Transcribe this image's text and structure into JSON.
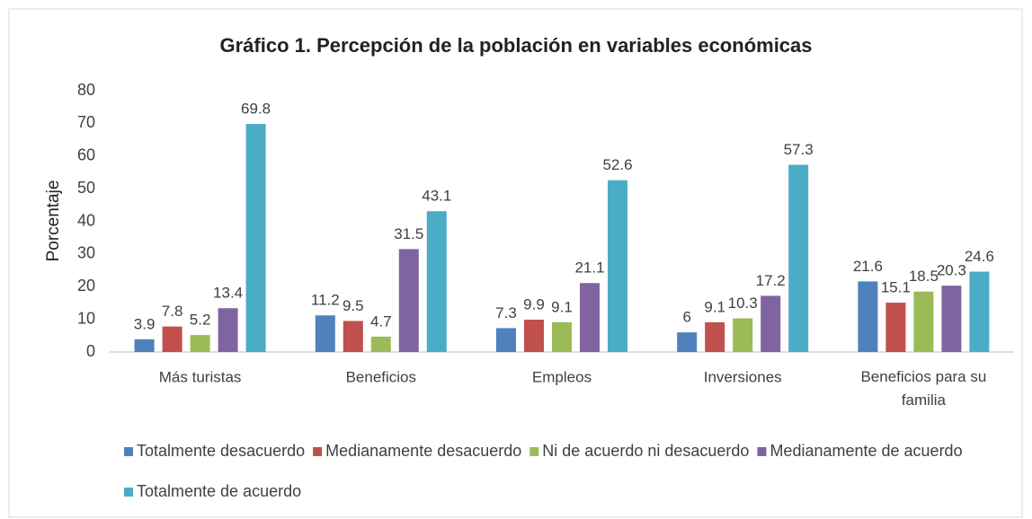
{
  "chart_data": {
    "type": "bar",
    "title": "Gráfico 1. Percepción de la población en variables económicas",
    "y_label": "Porcentaje",
    "categories": [
      "Más turistas",
      "Beneficios",
      "Empleos",
      "Inversiones",
      "Beneficios para su familia"
    ],
    "series": [
      {
        "name": "Totalmente desacuerdo",
        "color": "#4f81bd",
        "values": [
          3.9,
          11.2,
          7.3,
          6,
          21.6
        ]
      },
      {
        "name": "Medianamente desacuerdo",
        "color": "#c0504d",
        "values": [
          7.8,
          9.5,
          9.9,
          9.1,
          15.1
        ]
      },
      {
        "name": "Ni de acuerdo ni desacuerdo",
        "color": "#9bbb59",
        "values": [
          5.2,
          4.7,
          9.1,
          10.3,
          18.5
        ]
      },
      {
        "name": "Medianamente de acuerdo",
        "color": "#8064a2",
        "values": [
          13.4,
          31.5,
          21.1,
          17.2,
          20.3
        ]
      },
      {
        "name": "Totalmente de acuerdo",
        "color": "#4bacc6",
        "values": [
          69.8,
          43.1,
          52.6,
          57.3,
          24.6
        ]
      }
    ],
    "ylim": [
      0,
      80
    ],
    "yticks": [
      0,
      10,
      20,
      30,
      40,
      50,
      60,
      70,
      80
    ],
    "grid": false,
    "legend": "bottom"
  }
}
